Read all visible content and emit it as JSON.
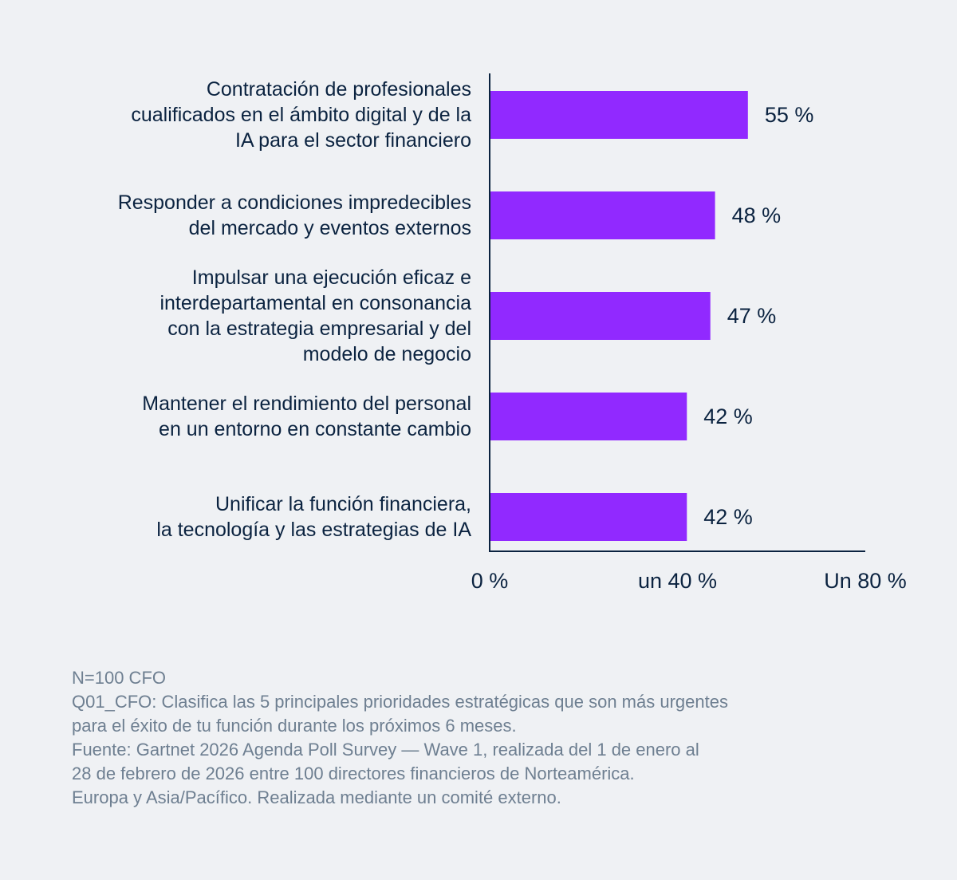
{
  "chart_data": {
    "type": "bar",
    "orientation": "horizontal",
    "categories": [
      [
        "Contratación de profesionales",
        "cualificados en el ámbito digital y de la",
        "IA para el sector financiero"
      ],
      [
        "Responder a condiciones impredecibles",
        "del mercado y eventos externos"
      ],
      [
        "Impulsar una ejecución eficaz e",
        "interdepartamental en consonancia",
        "con la estrategia empresarial y del",
        "modelo de negocio"
      ],
      [
        "Mantener el rendimiento del personal",
        "en un entorno en constante cambio"
      ],
      [
        "Unificar la función financiera,",
        "la tecnología y las estrategias de IA"
      ]
    ],
    "values": [
      55,
      48,
      47,
      42,
      42
    ],
    "value_labels": [
      "55 %",
      "48 %",
      "47 %",
      "42 %",
      "42 %"
    ],
    "xlim": [
      0,
      80
    ],
    "x_ticks": [
      0,
      40,
      80
    ],
    "x_tick_labels": [
      "0 %",
      "un 40 %",
      "Un 80 %"
    ],
    "bar_color": "#9129ff",
    "text_color": "#0b2340",
    "axis_color": "#0b2340",
    "grid": false,
    "legend": false
  },
  "notes": [
    "N=100 CFO",
    "Q01_CFO: Clasifica las 5 principales prioridades estratégicas que son más urgentes",
    "para el éxito de tu función durante los próximos 6 meses.",
    "Fuente: Gartnet 2026 Agenda Poll Survey — Wave 1, realizada del 1 de enero al",
    "28 de febrero de 2026 entre 100 directores financieros de Norteamérica.",
    "Europa y Asia/Pacífico. Realizada mediante un comité externo."
  ],
  "colors": {
    "background": "#eff1f4",
    "notes_text": "#6e7f91"
  }
}
